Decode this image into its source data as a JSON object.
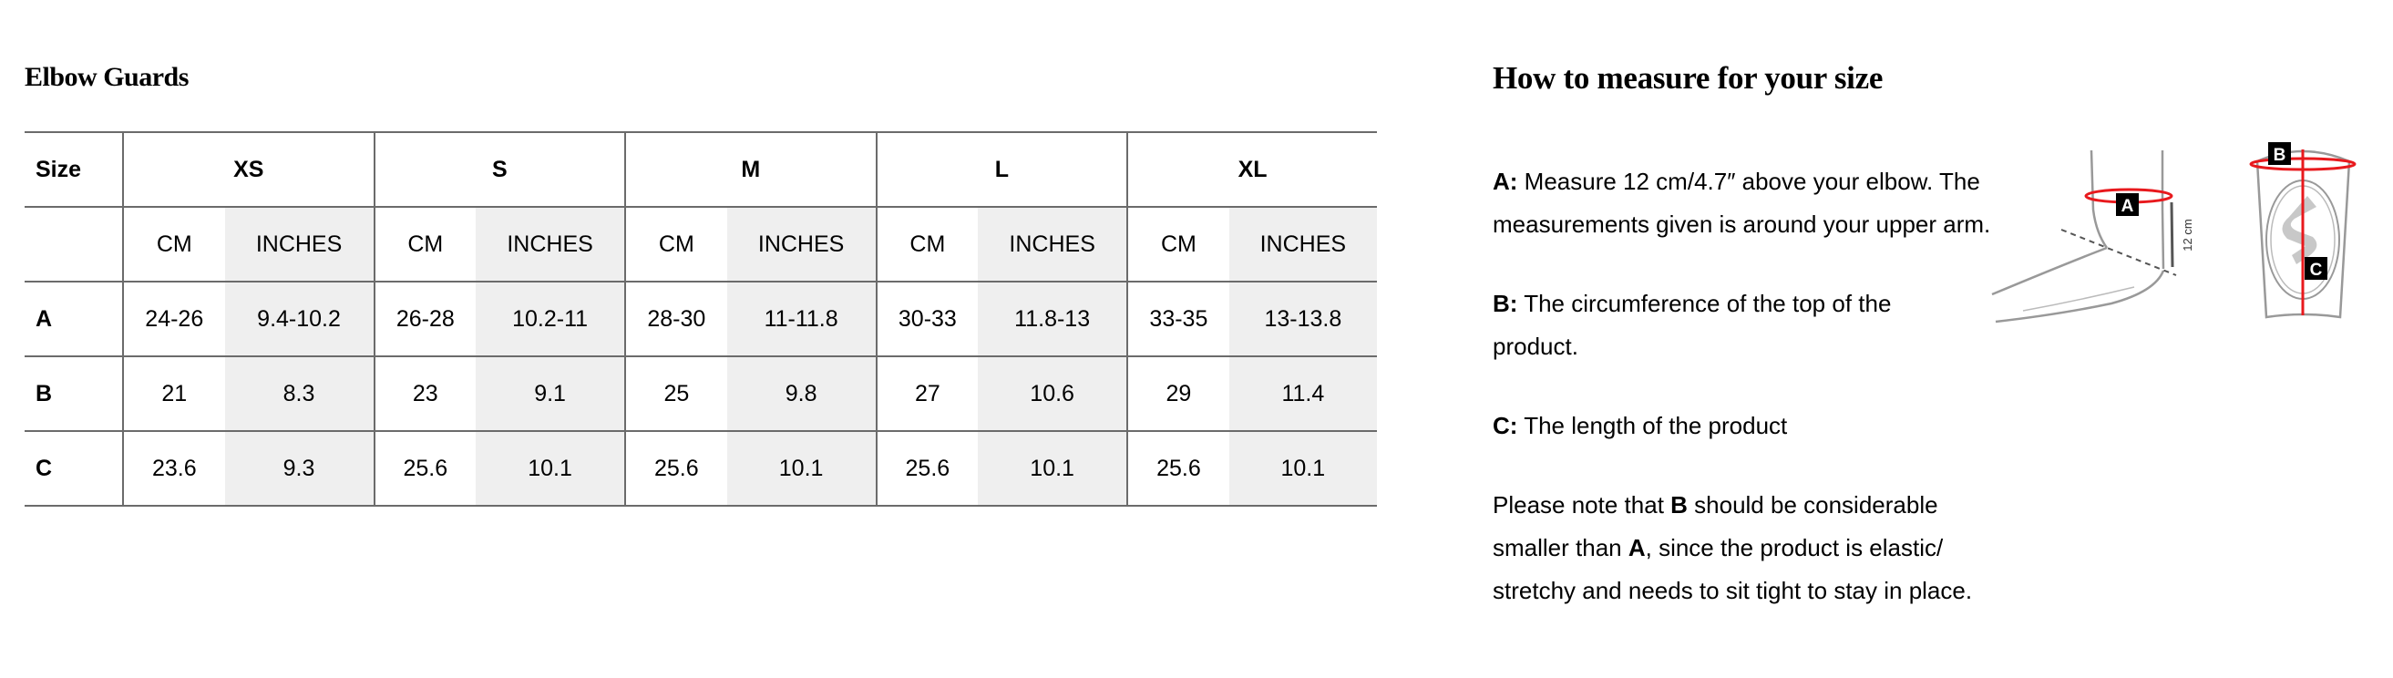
{
  "left": {
    "title": "Elbow Guards",
    "table": {
      "size_label": "Size",
      "sizes": [
        "XS",
        "S",
        "M",
        "L",
        "XL"
      ],
      "units": [
        "CM",
        "INCHES"
      ],
      "rows": [
        {
          "label": "A",
          "values": [
            "24-26",
            "9.4-10.2",
            "26-28",
            "10.2-11",
            "28-30",
            "11-11.8",
            "30-33",
            "11.8-13",
            "33-35",
            "13-13.8"
          ]
        },
        {
          "label": "B",
          "values": [
            "21",
            "8.3",
            "23",
            "9.1",
            "25",
            "9.8",
            "27",
            "10.6",
            "29",
            "11.4"
          ]
        },
        {
          "label": "C",
          "values": [
            "23.6",
            "9.3",
            "25.6",
            "10.1",
            "25.6",
            "10.1",
            "25.6",
            "10.1",
            "25.6",
            "10.1"
          ]
        }
      ]
    }
  },
  "right": {
    "title": "How to measure for your size",
    "a_label": "A:",
    "a_text": " Measure 12 cm/4.7″ above your elbow. The measurements given is around your upper arm.",
    "b_label": "B:",
    "b_text": " The circumference of the top of the product.",
    "c_label": "C:",
    "c_text": " The length of the product",
    "note_1": "Please note that ",
    "note_b": "B",
    "note_2": " should be considerable smaller than ",
    "note_a": "A",
    "note_3": ", since the product is elastic/ stretchy and needs to sit tight to stay in place.",
    "illustration": {
      "marker_a": "A",
      "marker_b": "B",
      "marker_c": "C",
      "distance": "12 cm",
      "accent": "#e8191d"
    }
  }
}
